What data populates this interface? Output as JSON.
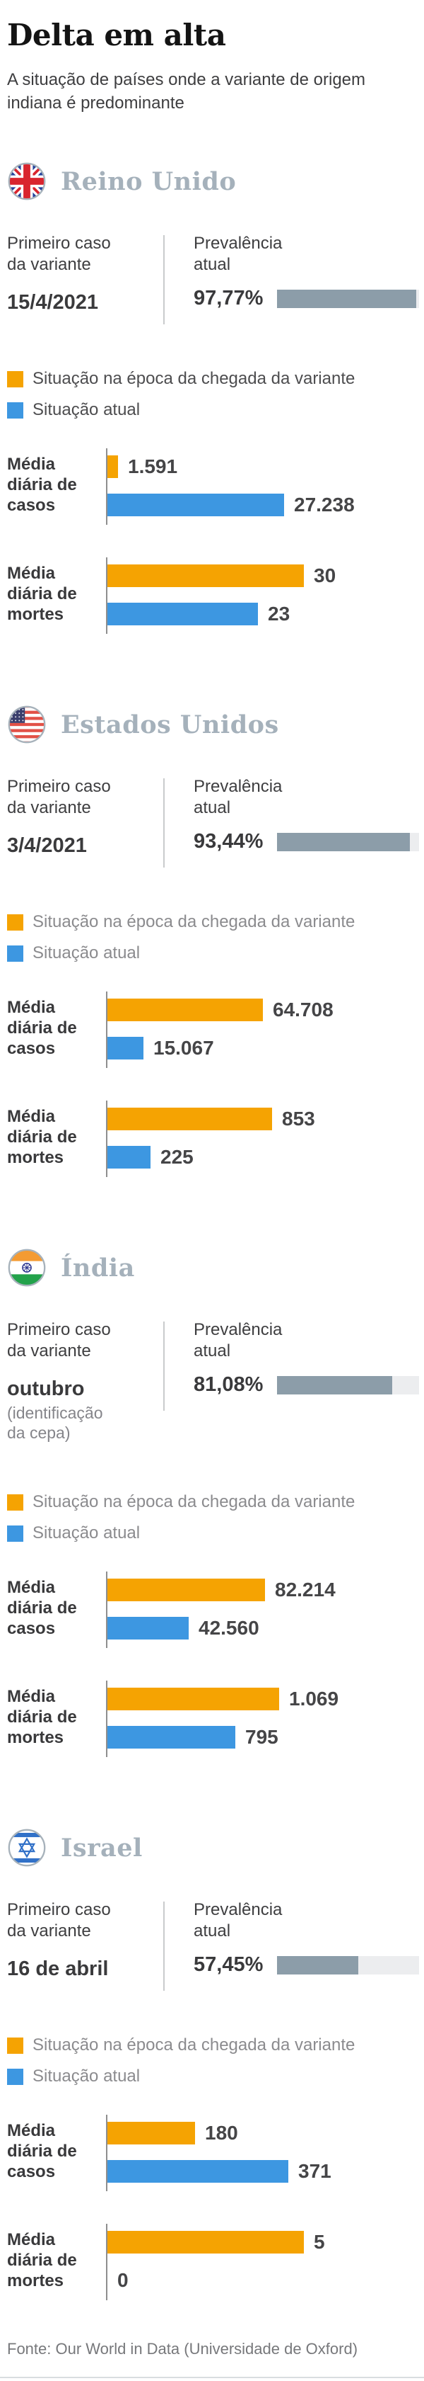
{
  "page": {
    "title": "Delta em alta",
    "subtitle": "A situação de países onde a variante de origem indiana é predominante",
    "source": "Fonte: Our World in Data (Universidade de Oxford)"
  },
  "labels": {
    "first_case_l1": "Primeiro caso",
    "first_case_l2": "da variante",
    "prevalence_l1": "Prevalência",
    "prevalence_l2": "atual",
    "legend_arrival": "Situação na época da chegada da variante",
    "legend_current": "Situação atual",
    "cases_l1": "Média",
    "cases_l2": "diária de",
    "cases_l3": "casos",
    "deaths_l1": "Média",
    "deaths_l2": "diária de",
    "deaths_l3": "mortes"
  },
  "colors": {
    "arrival_orange": "#F5A302",
    "current_blue": "#3D97E1",
    "prevalence_fill": "#8C9DA9",
    "prevalence_track": "#ECEDEF",
    "country_title": "#A5B1BB",
    "uk_legend_text": "#4D4D4F",
    "legend_text": "#8B8B8E"
  },
  "icons": {
    "uk-flag-icon": "circular Union Jack flag",
    "us-flag-icon": "circular United States flag",
    "india-flag-icon": "circular India flag",
    "israel-flag-icon": "circular Israel flag"
  },
  "countries": [
    {
      "name": "Reino Unido",
      "first_case": "15/4/2021",
      "prevalence": "97,77%",
      "prevalence_pct": 97.77,
      "legend_text_color": "#4D4D4F",
      "cases_arrival": "1.591",
      "cases_current": "27.238",
      "deaths_arrival": "30",
      "deaths_current": "23",
      "px": {
        "cases_arrival": 15,
        "cases_current": 250,
        "deaths_arrival": 278,
        "deaths_current": 213
      }
    },
    {
      "name": "Estados Unidos",
      "first_case": "3/4/2021",
      "prevalence": "93,44%",
      "prevalence_pct": 93.44,
      "legend_text_color": "#8B8B8E",
      "cases_arrival": "64.708",
      "cases_current": "15.067",
      "deaths_arrival": "853",
      "deaths_current": "225",
      "px": {
        "cases_arrival": 220,
        "cases_current": 51,
        "deaths_arrival": 233,
        "deaths_current": 61
      }
    },
    {
      "name": "Índia",
      "first_case": "outubro",
      "first_case_note_l1": "(identificação",
      "first_case_note_l2": "da cepa)",
      "prevalence": "81,08%",
      "prevalence_pct": 81.08,
      "legend_text_color": "#8B8B8E",
      "cases_arrival": "82.214",
      "cases_current": "42.560",
      "deaths_arrival": "1.069",
      "deaths_current": "795",
      "px": {
        "cases_arrival": 223,
        "cases_current": 115,
        "deaths_arrival": 243,
        "deaths_current": 181
      }
    },
    {
      "name": "Israel",
      "first_case": "16 de abril",
      "prevalence": "57,45%",
      "prevalence_pct": 57.45,
      "legend_text_color": "#8B8B8E",
      "cases_arrival": "180",
      "cases_current": "371",
      "deaths_arrival": "5",
      "deaths_current": "0",
      "px": {
        "cases_arrival": 124,
        "cases_current": 256,
        "deaths_arrival": 278,
        "deaths_current": 0
      }
    }
  ],
  "chart_data": [
    {
      "type": "bar",
      "country": "Reino Unido",
      "first_case": "15/4/2021",
      "prevalence_pct": 97.77,
      "categories": [
        "Média diária de casos",
        "Média diária de mortes"
      ],
      "series": [
        {
          "name": "Situação na época da chegada da variante",
          "values": [
            1591,
            30
          ],
          "color": "#F5A302"
        },
        {
          "name": "Situação atual",
          "values": [
            27238,
            23
          ],
          "color": "#3D97E1"
        }
      ],
      "layout": {
        "orientation": "horizontal",
        "grid": false,
        "legend_position": "top"
      }
    },
    {
      "type": "bar",
      "country": "Estados Unidos",
      "first_case": "3/4/2021",
      "prevalence_pct": 93.44,
      "categories": [
        "Média diária de casos",
        "Média diária de mortes"
      ],
      "series": [
        {
          "name": "Situação na época da chegada da variante",
          "values": [
            64708,
            853
          ],
          "color": "#F5A302"
        },
        {
          "name": "Situação atual",
          "values": [
            15067,
            225
          ],
          "color": "#3D97E1"
        }
      ],
      "layout": {
        "orientation": "horizontal",
        "grid": false,
        "legend_position": "top"
      }
    },
    {
      "type": "bar",
      "country": "Índia",
      "first_case": "outubro (identificação da cepa)",
      "prevalence_pct": 81.08,
      "categories": [
        "Média diária de casos",
        "Média diária de mortes"
      ],
      "series": [
        {
          "name": "Situação na época da chegada da variante",
          "values": [
            82214,
            1069
          ],
          "color": "#F5A302"
        },
        {
          "name": "Situação atual",
          "values": [
            42560,
            795
          ],
          "color": "#3D97E1"
        }
      ],
      "layout": {
        "orientation": "horizontal",
        "grid": false,
        "legend_position": "top"
      }
    },
    {
      "type": "bar",
      "country": "Israel",
      "first_case": "16 de abril",
      "prevalence_pct": 57.45,
      "categories": [
        "Média diária de casos",
        "Média diária de mortes"
      ],
      "series": [
        {
          "name": "Situação na época da chegada da variante",
          "values": [
            180,
            5
          ],
          "color": "#F5A302"
        },
        {
          "name": "Situação atual",
          "values": [
            371,
            0
          ],
          "color": "#3D97E1"
        }
      ],
      "layout": {
        "orientation": "horizontal",
        "grid": false,
        "legend_position": "top"
      }
    }
  ]
}
